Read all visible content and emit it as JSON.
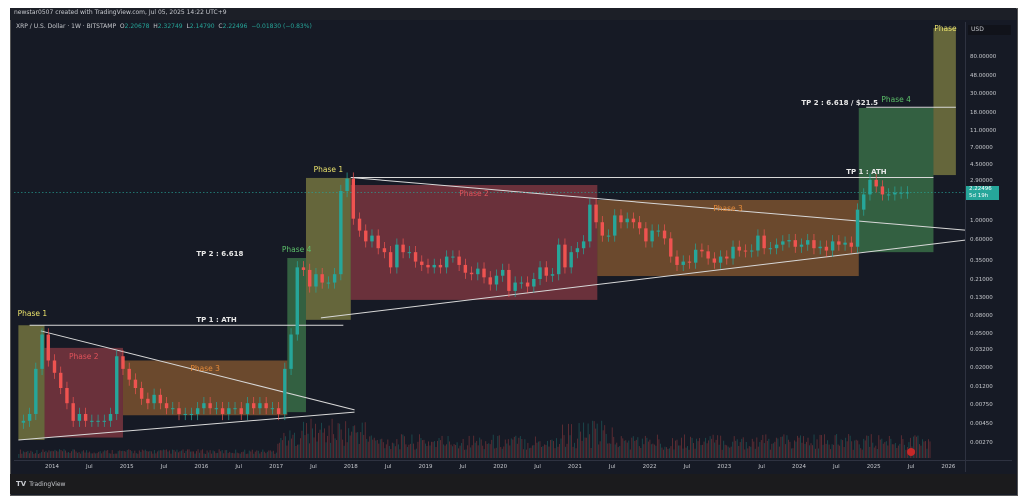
{
  "header": {
    "credit": "newstar0507 created with TradingView.com, Jul 05, 2025 14:22 UTC+9",
    "symbol": "XRP / U.S. Dollar · 1W · BITSTAMP",
    "ohlc": {
      "o_label": "O",
      "o": "2.20678",
      "h_label": "H",
      "h": "2.32749",
      "l_label": "L",
      "l": "2.14790",
      "c_label": "C",
      "c": "2.22496",
      "change": "−0.01830 (−0.83%)"
    }
  },
  "currency": "USD",
  "current_price": {
    "value": "2.22496",
    "countdown": "5d 19h",
    "color": "#26a69a"
  },
  "footer": {
    "logo": "TradingView"
  },
  "chart_data": {
    "type": "candlestick",
    "scale": "log",
    "ylim": [
      0.0022,
      200
    ],
    "grid": false,
    "price_ticks": [
      "80.00000",
      "48.00000",
      "30.00000",
      "18.00000",
      "11.00000",
      "7.00000",
      "4.50000",
      "2.90000",
      "1.00000",
      "0.60000",
      "0.35000",
      "0.21000",
      "0.13000",
      "0.08000",
      "0.05000",
      "0.03200",
      "0.02000",
      "0.01200",
      "0.00750",
      "0.00450",
      "0.00270"
    ],
    "time_ticks": [
      {
        "label": "2014",
        "t": 2014
      },
      {
        "label": "Jul",
        "t": 2014.5
      },
      {
        "label": "2015",
        "t": 2015
      },
      {
        "label": "Jul",
        "t": 2015.5
      },
      {
        "label": "2016",
        "t": 2016
      },
      {
        "label": "Jul",
        "t": 2016.5
      },
      {
        "label": "2017",
        "t": 2017
      },
      {
        "label": "Jul",
        "t": 2017.5
      },
      {
        "label": "2018",
        "t": 2018
      },
      {
        "label": "Jul",
        "t": 2018.5
      },
      {
        "label": "2019",
        "t": 2019
      },
      {
        "label": "Jul",
        "t": 2019.5
      },
      {
        "label": "2020",
        "t": 2020
      },
      {
        "label": "Jul",
        "t": 2020.5
      },
      {
        "label": "2021",
        "t": 2021
      },
      {
        "label": "Jul",
        "t": 2021.5
      },
      {
        "label": "2022",
        "t": 2022
      },
      {
        "label": "Jul",
        "t": 2022.5
      },
      {
        "label": "2023",
        "t": 2023
      },
      {
        "label": "Jul",
        "t": 2023.5
      },
      {
        "label": "2024",
        "t": 2024
      },
      {
        "label": "Jul",
        "t": 2024.5
      },
      {
        "label": "2025",
        "t": 2025
      },
      {
        "label": "Jul",
        "t": 2025.5
      },
      {
        "label": "2026",
        "t": 2026
      }
    ],
    "series": {
      "start": "2013-08",
      "interval": "1M",
      "close": [
        0.005,
        0.006,
        0.02,
        0.05,
        0.025,
        0.018,
        0.012,
        0.008,
        0.005,
        0.006,
        0.005,
        0.005,
        0.005,
        0.005,
        0.006,
        0.028,
        0.02,
        0.015,
        0.012,
        0.009,
        0.008,
        0.01,
        0.008,
        0.007,
        0.007,
        0.006,
        0.006,
        0.006,
        0.007,
        0.008,
        0.007,
        0.007,
        0.006,
        0.007,
        0.007,
        0.006,
        0.008,
        0.007,
        0.008,
        0.007,
        0.007,
        0.006,
        0.02,
        0.05,
        0.3,
        0.28,
        0.18,
        0.25,
        0.2,
        0.2,
        0.25,
        2.3,
        3.2,
        1.1,
        0.8,
        0.6,
        0.7,
        0.5,
        0.45,
        0.3,
        0.55,
        0.45,
        0.45,
        0.35,
        0.32,
        0.3,
        0.32,
        0.3,
        0.4,
        0.4,
        0.32,
        0.26,
        0.25,
        0.29,
        0.23,
        0.19,
        0.24,
        0.28,
        0.16,
        0.2,
        0.2,
        0.18,
        0.22,
        0.3,
        0.24,
        0.25,
        0.55,
        0.3,
        0.45,
        0.5,
        0.6,
        1.6,
        1.0,
        0.7,
        0.7,
        1.2,
        1.0,
        1.1,
        1.0,
        0.85,
        0.6,
        0.8,
        0.8,
        0.65,
        0.4,
        0.32,
        0.35,
        0.34,
        0.48,
        0.46,
        0.38,
        0.34,
        0.4,
        0.38,
        0.52,
        0.47,
        0.46,
        0.47,
        0.7,
        0.5,
        0.5,
        0.55,
        0.6,
        0.62,
        0.52,
        0.55,
        0.62,
        0.5,
        0.52,
        0.47,
        0.6,
        0.55,
        0.58,
        0.52,
        1.4,
        2.1,
        3.1,
        2.6,
        2.1,
        2.1,
        2.2,
        2.2,
        2.22
      ]
    },
    "colors": {
      "up": "#26a69a",
      "down": "#ef5350"
    },
    "annotations": {
      "boxes": [
        {
          "label": "Phase 1",
          "start": 2013.55,
          "end": 2013.9,
          "low": 0.003,
          "high": 0.064,
          "color": "#d4cf5a",
          "label_pos": "above-left"
        },
        {
          "label": "Phase 2",
          "start": 2013.9,
          "end": 2014.95,
          "low": 0.0032,
          "high": 0.035,
          "color": "#e0525a",
          "label_pos": "inside"
        },
        {
          "label": "Phase 3",
          "start": 2014.95,
          "end": 2017.15,
          "low": 0.0058,
          "high": 0.025,
          "color": "#e38a3a",
          "label_pos": "inside"
        },
        {
          "label": "Phase 4",
          "start": 2017.15,
          "end": 2017.4,
          "low": 0.0063,
          "high": 0.385,
          "color": "#5cc06a",
          "label_pos": "above"
        },
        {
          "label": "Phase 1",
          "start": 2017.4,
          "end": 2018.0,
          "low": 0.074,
          "high": 3.26,
          "color": "#d4cf5a",
          "label_pos": "above"
        },
        {
          "label": "Phase 2",
          "start": 2018.0,
          "end": 2021.3,
          "low": 0.126,
          "high": 2.7,
          "color": "#e0525a",
          "label_pos": "inside"
        },
        {
          "label": "Phase 3",
          "start": 2021.3,
          "end": 2024.8,
          "low": 0.238,
          "high": 1.81,
          "color": "#e38a3a",
          "label_pos": "inside"
        },
        {
          "label": "Phase 4",
          "start": 2024.8,
          "end": 2025.8,
          "low": 0.45,
          "high": 21.1,
          "color": "#5cc06a",
          "label_pos": "above"
        },
        {
          "label": "Phase",
          "start": 2025.8,
          "end": 2026.1,
          "low": 3.52,
          "high": 178,
          "color": "#d4cf5a",
          "label_pos": "top"
        }
      ],
      "lines": [
        {
          "name": "tp1-2017-line",
          "t1": 2013.7,
          "p1": 0.064,
          "t2": 2017.9,
          "p2": 0.064
        },
        {
          "name": "triangle-upper-1",
          "t1": 2013.85,
          "p1": 0.055,
          "t2": 2018.05,
          "p2": 0.0067
        },
        {
          "name": "triangle-lower-1",
          "t1": 2013.55,
          "p1": 0.003,
          "t2": 2018.05,
          "p2": 0.0063
        },
        {
          "name": "triangle-upper-2",
          "t1": 2018.0,
          "p1": 3.3,
          "t2": 2026.4,
          "p2": 0.81
        },
        {
          "name": "triangle-lower-2",
          "t1": 2017.6,
          "p1": 0.078,
          "t2": 2026.4,
          "p2": 0.62
        },
        {
          "name": "tp1-2025-line",
          "t1": 2018.0,
          "p1": 3.3,
          "t2": 2025.8,
          "p2": 3.3
        },
        {
          "name": "tp2-2025-line",
          "t1": 2024.9,
          "p1": 21.5,
          "t2": 2026.1,
          "p2": 21.5
        }
      ],
      "texts": [
        {
          "text": "TP 1 : ATH",
          "t": 2016.2,
          "p": 0.072
        },
        {
          "text": "TP 2 : 6.618",
          "t": 2016.2,
          "p": 0.42
        },
        {
          "text": "TP 1 : ATH",
          "t": 2024.9,
          "p": 3.7
        },
        {
          "text": "TP 2 : 6.618 / $21.5",
          "t": 2024.3,
          "p": 23.5
        }
      ]
    }
  }
}
